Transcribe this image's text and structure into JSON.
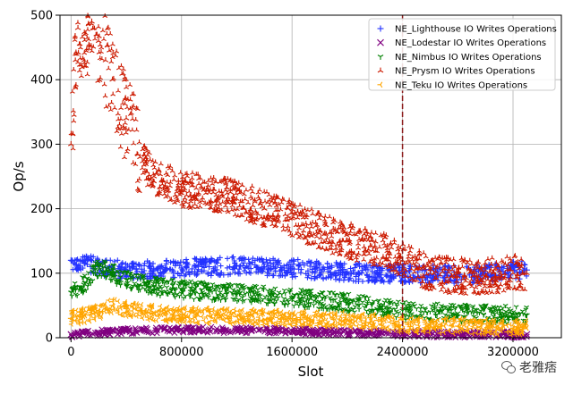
{
  "chart_data": {
    "type": "scatter",
    "title": "",
    "xlabel": "Slot",
    "ylabel": "Op/s",
    "xlim": [
      -80000,
      3550000
    ],
    "ylim": [
      0,
      500
    ],
    "x_ticks": [
      0,
      800000,
      1600000,
      2400000,
      3200000
    ],
    "x_tick_labels": [
      "0",
      "800000",
      "1600000",
      "2400000",
      "3200000"
    ],
    "y_ticks": [
      0,
      100,
      200,
      300,
      400,
      500
    ],
    "y_tick_labels": [
      "0",
      "100",
      "200",
      "300",
      "400",
      "500"
    ],
    "grid": true,
    "legend_position": "top-right",
    "vline": {
      "x": 2400000,
      "color": "#8b1a1a",
      "style": "dashed"
    },
    "series": [
      {
        "name": "NE_Lighthouse IO Writes Operations",
        "color": "#2433ff",
        "marker": "+",
        "x": [
          0,
          100000,
          200000,
          400000,
          600000,
          800000,
          1000000,
          1200000,
          1400000,
          1600000,
          1800000,
          2000000,
          2200000,
          2400000,
          2600000,
          2800000,
          3000000,
          3200000,
          3300000
        ],
        "y": [
          120,
          115,
          110,
          105,
          105,
          108,
          110,
          112,
          110,
          108,
          105,
          102,
          100,
          100,
          98,
          98,
          100,
          105,
          105
        ]
      },
      {
        "name": "NE_Lodestar IO Writes Operations",
        "color": "#800080",
        "marker": "x",
        "x": [
          0,
          200000,
          400000,
          800000,
          1200000,
          1600000,
          2000000,
          2400000,
          2800000,
          3200000,
          3300000
        ],
        "y": [
          5,
          8,
          10,
          12,
          12,
          10,
          8,
          6,
          5,
          5,
          5
        ]
      },
      {
        "name": "NE_Nimbus IO Writes Operations",
        "color": "#008000",
        "marker": "1",
        "x": [
          0,
          100000,
          200000,
          300000,
          400000,
          600000,
          800000,
          1000000,
          1200000,
          1600000,
          2000000,
          2400000,
          2800000,
          3200000,
          3300000
        ],
        "y": [
          70,
          85,
          110,
          100,
          90,
          80,
          75,
          72,
          70,
          62,
          55,
          42,
          38,
          36,
          35
        ]
      },
      {
        "name": "NE_Prysm IO Writes Operations",
        "color": "#cc1a00",
        "marker": "2",
        "x": [
          0,
          50000,
          100000,
          150000,
          200000,
          250000,
          300000,
          400000,
          500000,
          600000,
          800000,
          1000000,
          1200000,
          1400000,
          1600000,
          1800000,
          2000000,
          2200000,
          2400000,
          2600000,
          2800000,
          3000000,
          3200000,
          3300000
        ],
        "y": [
          300,
          480,
          470,
          490,
          460,
          430,
          400,
          340,
          280,
          250,
          230,
          225,
          215,
          200,
          185,
          165,
          150,
          140,
          120,
          100,
          95,
          95,
          100,
          100
        ]
      },
      {
        "name": "NE_Teku IO Writes Operations",
        "color": "#ffa500",
        "marker": "4",
        "x": [
          0,
          100000,
          200000,
          300000,
          400000,
          600000,
          800000,
          1000000,
          1200000,
          1600000,
          2000000,
          2400000,
          2800000,
          3200000,
          3300000
        ],
        "y": [
          30,
          35,
          40,
          50,
          45,
          38,
          35,
          34,
          33,
          30,
          28,
          20,
          18,
          15,
          15
        ]
      }
    ]
  },
  "watermark": {
    "text": "老雅痞"
  }
}
